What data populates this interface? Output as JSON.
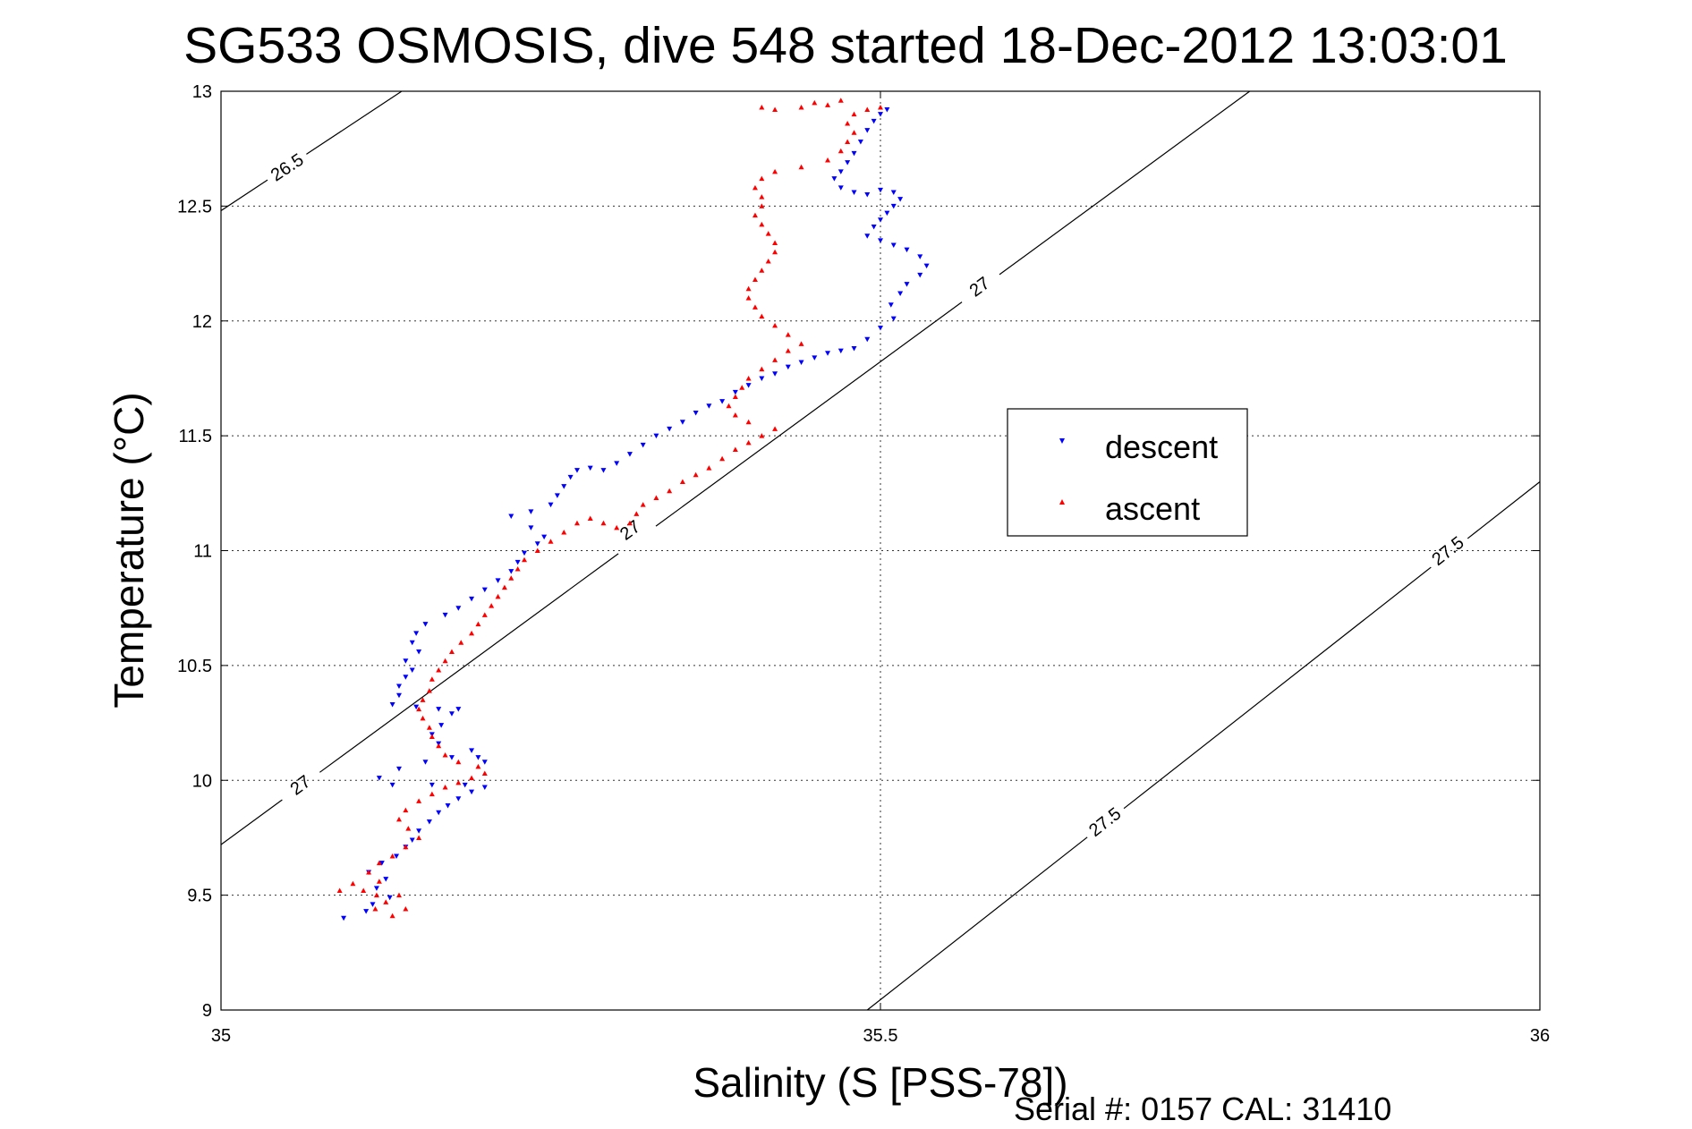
{
  "chart_data": {
    "type": "scatter",
    "title": "SG533 OSMOSIS, dive 548 started 18-Dec-2012 13:03:01",
    "xlabel": "Salinity (S [PSS-78])",
    "ylabel": "Temperature (°C)",
    "xlim": [
      35,
      36
    ],
    "ylim": [
      9,
      13
    ],
    "xticks": [
      35,
      35.5,
      36
    ],
    "xtick_labels": [
      "35",
      "35.5",
      "36"
    ],
    "yticks": [
      9,
      9.5,
      10,
      10.5,
      11,
      11.5,
      12,
      12.5,
      13
    ],
    "ytick_labels": [
      "9",
      "9.5",
      "10",
      "10.5",
      "11",
      "11.5",
      "12",
      "12.5",
      "13"
    ],
    "grid": true,
    "legend_position": "right-center",
    "footer": "Serial #: 0157  CAL: 31410",
    "contours": [
      {
        "label": "26.5",
        "points": [
          [
            35.0,
            12.48
          ],
          [
            35.137,
            13.0
          ]
        ],
        "label_positions": [
          [
            35.05,
            12.67
          ]
        ]
      },
      {
        "label": "27",
        "points": [
          [
            35.0,
            9.72
          ],
          [
            35.78,
            13.0
          ]
        ],
        "label_positions": [
          [
            35.06,
            9.98
          ],
          [
            35.31,
            11.09
          ],
          [
            35.575,
            12.15
          ]
        ]
      },
      {
        "label": "27.5",
        "points": [
          [
            35.49,
            9.0
          ],
          [
            36.0,
            11.3
          ]
        ],
        "label_positions": [
          [
            35.67,
            9.82
          ],
          [
            35.93,
            11.0
          ]
        ]
      }
    ],
    "series": [
      {
        "name": "descent",
        "color": "#0000ff",
        "marker": "triangle-down",
        "points": [
          [
            35.093,
            9.4
          ],
          [
            35.11,
            9.43
          ],
          [
            35.115,
            9.46
          ],
          [
            35.128,
            9.49
          ],
          [
            35.118,
            9.53
          ],
          [
            35.125,
            9.57
          ],
          [
            35.112,
            9.6
          ],
          [
            35.122,
            9.64
          ],
          [
            35.133,
            9.67
          ],
          [
            35.14,
            9.71
          ],
          [
            35.145,
            9.74
          ],
          [
            35.15,
            9.78
          ],
          [
            35.158,
            9.82
          ],
          [
            35.165,
            9.86
          ],
          [
            35.172,
            9.89
          ],
          [
            35.18,
            9.92
          ],
          [
            35.19,
            9.95
          ],
          [
            35.2,
            9.97
          ],
          [
            35.185,
            9.98
          ],
          [
            35.16,
            9.98
          ],
          [
            35.13,
            9.98
          ],
          [
            35.12,
            10.01
          ],
          [
            35.135,
            10.05
          ],
          [
            35.155,
            10.08
          ],
          [
            35.175,
            10.1
          ],
          [
            35.195,
            10.1
          ],
          [
            35.2,
            10.08
          ],
          [
            35.19,
            10.13
          ],
          [
            35.165,
            10.16
          ],
          [
            35.16,
            10.2
          ],
          [
            35.167,
            10.24
          ],
          [
            35.175,
            10.29
          ],
          [
            35.18,
            10.31
          ],
          [
            35.165,
            10.31
          ],
          [
            35.148,
            10.32
          ],
          [
            35.13,
            10.33
          ],
          [
            35.135,
            10.37
          ],
          [
            35.135,
            10.41
          ],
          [
            35.14,
            10.45
          ],
          [
            35.145,
            10.48
          ],
          [
            35.14,
            10.52
          ],
          [
            35.15,
            10.56
          ],
          [
            35.145,
            10.6
          ],
          [
            35.148,
            10.64
          ],
          [
            35.155,
            10.68
          ],
          [
            35.17,
            10.72
          ],
          [
            35.18,
            10.75
          ],
          [
            35.19,
            10.79
          ],
          [
            35.2,
            10.83
          ],
          [
            35.21,
            10.87
          ],
          [
            35.22,
            10.91
          ],
          [
            35.225,
            10.95
          ],
          [
            35.23,
            10.99
          ],
          [
            35.24,
            11.03
          ],
          [
            35.245,
            11.06
          ],
          [
            35.235,
            11.1
          ],
          [
            35.22,
            11.15
          ],
          [
            35.235,
            11.17
          ],
          [
            35.25,
            11.2
          ],
          [
            35.255,
            11.24
          ],
          [
            35.26,
            11.28
          ],
          [
            35.265,
            11.32
          ],
          [
            35.27,
            11.35
          ],
          [
            35.28,
            11.36
          ],
          [
            35.29,
            11.35
          ],
          [
            35.3,
            11.38
          ],
          [
            35.31,
            11.42
          ],
          [
            35.32,
            11.46
          ],
          [
            35.33,
            11.5
          ],
          [
            35.34,
            11.53
          ],
          [
            35.35,
            11.56
          ],
          [
            35.36,
            11.6
          ],
          [
            35.37,
            11.63
          ],
          [
            35.38,
            11.65
          ],
          [
            35.39,
            11.69
          ],
          [
            35.4,
            11.72
          ],
          [
            35.41,
            11.75
          ],
          [
            35.42,
            11.77
          ],
          [
            35.43,
            11.8
          ],
          [
            35.44,
            11.82
          ],
          [
            35.45,
            11.84
          ],
          [
            35.46,
            11.86
          ],
          [
            35.47,
            11.87
          ],
          [
            35.48,
            11.88
          ],
          [
            35.49,
            11.92
          ],
          [
            35.5,
            11.97
          ],
          [
            35.51,
            12.01
          ],
          [
            35.508,
            12.07
          ],
          [
            35.515,
            12.12
          ],
          [
            35.52,
            12.16
          ],
          [
            35.53,
            12.2
          ],
          [
            35.535,
            12.24
          ],
          [
            35.53,
            12.28
          ],
          [
            35.52,
            12.31
          ],
          [
            35.51,
            12.33
          ],
          [
            35.5,
            12.35
          ],
          [
            35.49,
            12.37
          ],
          [
            35.495,
            12.41
          ],
          [
            35.5,
            12.44
          ],
          [
            35.505,
            12.47
          ],
          [
            35.51,
            12.5
          ],
          [
            35.515,
            12.53
          ],
          [
            35.51,
            12.56
          ],
          [
            35.5,
            12.57
          ],
          [
            35.49,
            12.55
          ],
          [
            35.48,
            12.56
          ],
          [
            35.47,
            12.58
          ],
          [
            35.465,
            12.62
          ],
          [
            35.47,
            12.65
          ],
          [
            35.475,
            12.69
          ],
          [
            35.48,
            12.73
          ],
          [
            35.485,
            12.78
          ],
          [
            35.49,
            12.83
          ],
          [
            35.495,
            12.87
          ],
          [
            35.5,
            12.9
          ],
          [
            35.505,
            12.92
          ]
        ]
      },
      {
        "name": "ascent",
        "color": "#ff0000",
        "marker": "triangle-up",
        "points": [
          [
            35.09,
            9.52
          ],
          [
            35.1,
            9.55
          ],
          [
            35.108,
            9.52
          ],
          [
            35.118,
            9.5
          ],
          [
            35.125,
            9.47
          ],
          [
            35.117,
            9.44
          ],
          [
            35.13,
            9.41
          ],
          [
            35.14,
            9.44
          ],
          [
            35.135,
            9.5
          ],
          [
            35.12,
            9.56
          ],
          [
            35.112,
            9.6
          ],
          [
            35.12,
            9.64
          ],
          [
            35.13,
            9.67
          ],
          [
            35.14,
            9.71
          ],
          [
            35.15,
            9.75
          ],
          [
            35.142,
            9.79
          ],
          [
            35.135,
            9.83
          ],
          [
            35.14,
            9.87
          ],
          [
            35.15,
            9.91
          ],
          [
            35.16,
            9.94
          ],
          [
            35.17,
            9.97
          ],
          [
            35.18,
            9.99
          ],
          [
            35.19,
            10.01
          ],
          [
            35.2,
            10.03
          ],
          [
            35.195,
            10.06
          ],
          [
            35.18,
            10.08
          ],
          [
            35.17,
            10.11
          ],
          [
            35.165,
            10.15
          ],
          [
            35.16,
            10.19
          ],
          [
            35.158,
            10.23
          ],
          [
            35.153,
            10.27
          ],
          [
            35.15,
            10.31
          ],
          [
            35.153,
            10.35
          ],
          [
            35.158,
            10.39
          ],
          [
            35.16,
            10.44
          ],
          [
            35.165,
            10.48
          ],
          [
            35.17,
            10.52
          ],
          [
            35.175,
            10.56
          ],
          [
            35.182,
            10.6
          ],
          [
            35.19,
            10.64
          ],
          [
            35.195,
            10.68
          ],
          [
            35.2,
            10.72
          ],
          [
            35.205,
            10.76
          ],
          [
            35.21,
            10.8
          ],
          [
            35.215,
            10.84
          ],
          [
            35.22,
            10.88
          ],
          [
            35.225,
            10.92
          ],
          [
            35.23,
            10.96
          ],
          [
            35.24,
            11.0
          ],
          [
            35.25,
            11.04
          ],
          [
            35.26,
            11.08
          ],
          [
            35.27,
            11.12
          ],
          [
            35.28,
            11.14
          ],
          [
            35.29,
            11.12
          ],
          [
            35.3,
            11.1
          ],
          [
            35.31,
            11.12
          ],
          [
            35.315,
            11.16
          ],
          [
            35.32,
            11.2
          ],
          [
            35.33,
            11.23
          ],
          [
            35.34,
            11.26
          ],
          [
            35.35,
            11.3
          ],
          [
            35.36,
            11.33
          ],
          [
            35.37,
            11.36
          ],
          [
            35.38,
            11.4
          ],
          [
            35.39,
            11.44
          ],
          [
            35.4,
            11.47
          ],
          [
            35.41,
            11.5
          ],
          [
            35.42,
            11.53
          ],
          [
            35.4,
            11.56
          ],
          [
            35.39,
            11.59
          ],
          [
            35.385,
            11.63
          ],
          [
            35.39,
            11.67
          ],
          [
            35.395,
            11.71
          ],
          [
            35.4,
            11.75
          ],
          [
            35.41,
            11.79
          ],
          [
            35.42,
            11.83
          ],
          [
            35.43,
            11.87
          ],
          [
            35.44,
            11.9
          ],
          [
            35.43,
            11.94
          ],
          [
            35.42,
            11.98
          ],
          [
            35.41,
            12.02
          ],
          [
            35.405,
            12.06
          ],
          [
            35.4,
            12.1
          ],
          [
            35.4,
            12.14
          ],
          [
            35.405,
            12.18
          ],
          [
            35.41,
            12.22
          ],
          [
            35.415,
            12.26
          ],
          [
            35.42,
            12.3
          ],
          [
            35.42,
            12.34
          ],
          [
            35.415,
            12.38
          ],
          [
            35.41,
            12.42
          ],
          [
            35.405,
            12.46
          ],
          [
            35.41,
            12.5
          ],
          [
            35.41,
            12.54
          ],
          [
            35.405,
            12.58
          ],
          [
            35.41,
            12.62
          ],
          [
            35.42,
            12.65
          ],
          [
            35.44,
            12.67
          ],
          [
            35.46,
            12.7
          ],
          [
            35.47,
            12.74
          ],
          [
            35.475,
            12.78
          ],
          [
            35.48,
            12.82
          ],
          [
            35.475,
            12.86
          ],
          [
            35.48,
            12.9
          ],
          [
            35.49,
            12.92
          ],
          [
            35.5,
            12.93
          ],
          [
            35.46,
            12.94
          ],
          [
            35.44,
            12.93
          ],
          [
            35.42,
            12.92
          ],
          [
            35.41,
            12.93
          ],
          [
            35.45,
            12.95
          ],
          [
            35.47,
            12.96
          ]
        ]
      }
    ]
  }
}
